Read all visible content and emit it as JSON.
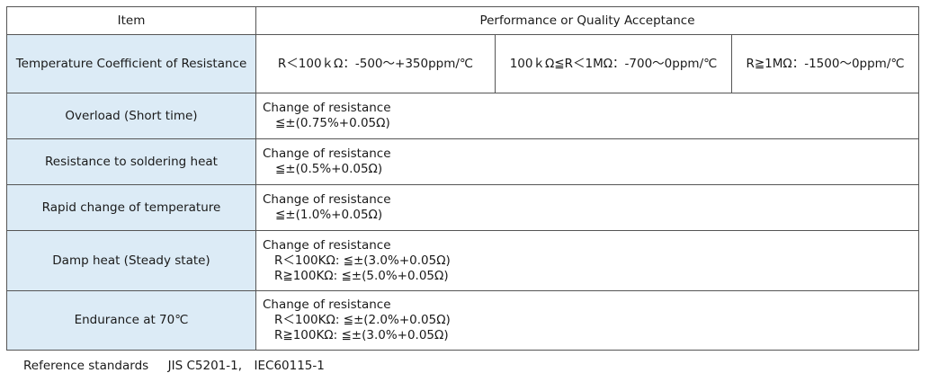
{
  "header": {
    "item": "Item",
    "performance": "Performance or Quality Acceptance"
  },
  "tcr": {
    "label": "Temperature Coefficient of Resistance",
    "ranges": [
      "R＜100ｋΩ：-500～+350ppm/℃",
      "100ｋΩ≦R＜1MΩ：-700～0ppm/℃",
      "R≧1MΩ：-1500～0ppm/℃"
    ]
  },
  "rows": [
    {
      "label": "Overload (Short time)",
      "title": "Change of resistance",
      "lines": [
        "≦±(0.75%+0.05Ω)"
      ]
    },
    {
      "label": "Resistance to soldering heat",
      "title": "Change of resistance",
      "lines": [
        "≦±(0.5%+0.05Ω)"
      ]
    },
    {
      "label": "Rapid change of temperature",
      "title": "Change of resistance",
      "lines": [
        "≦±(1.0%+0.05Ω)"
      ]
    },
    {
      "label": "Damp heat (Steady state)",
      "title": "Change of resistance",
      "lines": [
        "R＜100KΩ: ≦±(3.0%+0.05Ω)",
        "R≧100KΩ: ≦±(5.0%+0.05Ω)"
      ]
    },
    {
      "label": "Endurance at 70℃",
      "title": "Change of resistance",
      "lines": [
        "R＜100KΩ: ≦±(2.0%+0.05Ω)",
        "R≧100KΩ: ≦±(3.0%+0.05Ω)"
      ]
    }
  ],
  "footer": {
    "label": "Reference standards",
    "standards": "JIS C5201-1,　IEC60115-1"
  }
}
